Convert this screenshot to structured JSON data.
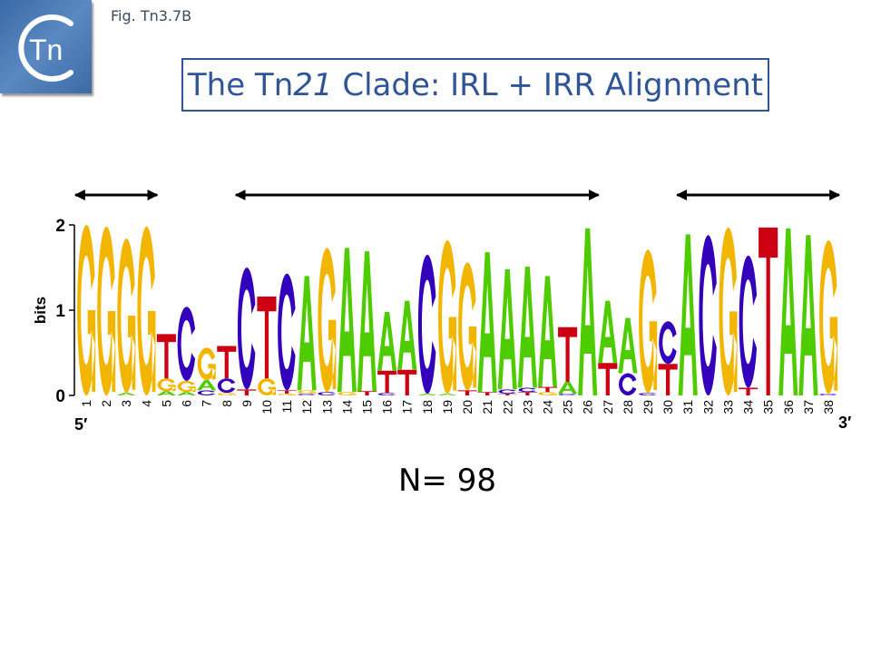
{
  "header": {
    "brand_text": "Tn",
    "figure_label": "Fig. Tn3.7B",
    "title_prefix": "The Tn",
    "title_italic": "21",
    "title_suffix": " Clade: IRL + IRR Alignment",
    "title_color": "#2f5597"
  },
  "footer": {
    "n_label": "N= 98"
  },
  "colors": {
    "A": "#4fcc00",
    "C": "#3300bb",
    "G": "#f2b600",
    "T": "#cc0011"
  },
  "chart_data": {
    "type": "sequence-logo",
    "ylabel": "bits",
    "ylim": [
      0,
      2
    ],
    "yticks": [
      "0",
      "1",
      "2"
    ],
    "five_prime_label": "5′",
    "three_prime_label": "3′",
    "arrow_spans": [
      [
        1,
        4
      ],
      [
        9,
        26
      ],
      [
        31,
        38
      ]
    ],
    "positions": [
      {
        "pos": "1",
        "stack": [
          [
            "G",
            2.0
          ]
        ]
      },
      {
        "pos": "2",
        "stack": [
          [
            "G",
            1.98
          ]
        ]
      },
      {
        "pos": "3",
        "stack": [
          [
            "A",
            0.03
          ],
          [
            "G",
            1.81
          ]
        ]
      },
      {
        "pos": "4",
        "stack": [
          [
            "G",
            1.98
          ]
        ]
      },
      {
        "pos": "5",
        "stack": [
          [
            "A",
            0.05
          ],
          [
            "G",
            0.15
          ],
          [
            "T",
            0.52
          ]
        ]
      },
      {
        "pos": "6",
        "stack": [
          [
            "A",
            0.04
          ],
          [
            "G",
            0.13
          ],
          [
            "C",
            0.87
          ]
        ]
      },
      {
        "pos": "7",
        "stack": [
          [
            "C",
            0.06
          ],
          [
            "A",
            0.12
          ],
          [
            "G",
            0.38
          ]
        ]
      },
      {
        "pos": "8",
        "stack": [
          [
            "G",
            0.03
          ],
          [
            "C",
            0.17
          ],
          [
            "T",
            0.38
          ]
        ]
      },
      {
        "pos": "9",
        "stack": [
          [
            "T",
            0.07
          ],
          [
            "C",
            1.43
          ]
        ]
      },
      {
        "pos": "10",
        "stack": [
          [
            "G",
            0.2
          ],
          [
            "T",
            0.96
          ]
        ]
      },
      {
        "pos": "11",
        "stack": [
          [
            "G",
            0.02
          ],
          [
            "T",
            0.04
          ],
          [
            "C",
            1.37
          ]
        ]
      },
      {
        "pos": "12",
        "stack": [
          [
            "C",
            0.02
          ],
          [
            "G",
            0.04
          ],
          [
            "A",
            1.34
          ]
        ]
      },
      {
        "pos": "13",
        "stack": [
          [
            "C",
            0.04
          ],
          [
            "G",
            1.69
          ]
        ]
      },
      {
        "pos": "14",
        "stack": [
          [
            "G",
            0.04
          ],
          [
            "A",
            1.69
          ]
        ]
      },
      {
        "pos": "15",
        "stack": [
          [
            "T",
            0.05
          ],
          [
            "A",
            1.64
          ]
        ]
      },
      {
        "pos": "16",
        "stack": [
          [
            "C",
            0.03
          ],
          [
            "T",
            0.26
          ],
          [
            "A",
            0.69
          ]
        ]
      },
      {
        "pos": "17",
        "stack": [
          [
            "T",
            0.3
          ],
          [
            "A",
            0.81
          ]
        ]
      },
      {
        "pos": "18",
        "stack": [
          [
            "A",
            0.02
          ],
          [
            "C",
            1.63
          ]
        ]
      },
      {
        "pos": "19",
        "stack": [
          [
            "A",
            0.02
          ],
          [
            "G",
            1.8
          ]
        ]
      },
      {
        "pos": "20",
        "stack": [
          [
            "T",
            0.06
          ],
          [
            "G",
            1.5
          ]
        ]
      },
      {
        "pos": "21",
        "stack": [
          [
            "T",
            0.04
          ],
          [
            "A",
            1.64
          ]
        ]
      },
      {
        "pos": "22",
        "stack": [
          [
            "T",
            0.02
          ],
          [
            "C",
            0.05
          ],
          [
            "A",
            1.41
          ]
        ]
      },
      {
        "pos": "23",
        "stack": [
          [
            "T",
            0.04
          ],
          [
            "C",
            0.05
          ],
          [
            "A",
            1.42
          ]
        ]
      },
      {
        "pos": "24",
        "stack": [
          [
            "G",
            0.04
          ],
          [
            "T",
            0.06
          ],
          [
            "A",
            1.3
          ]
        ]
      },
      {
        "pos": "25",
        "stack": [
          [
            "C",
            0.02
          ],
          [
            "A",
            0.14
          ],
          [
            "T",
            0.64
          ]
        ]
      },
      {
        "pos": "26",
        "stack": [
          [
            "A",
            1.96
          ]
        ]
      },
      {
        "pos": "27",
        "stack": [
          [
            "T",
            0.38
          ],
          [
            "A",
            0.73
          ]
        ]
      },
      {
        "pos": "28",
        "stack": [
          [
            "C",
            0.26
          ],
          [
            "A",
            0.65
          ]
        ]
      },
      {
        "pos": "29",
        "stack": [
          [
            "C",
            0.03
          ],
          [
            "G",
            1.68
          ]
        ]
      },
      {
        "pos": "30",
        "stack": [
          [
            "T",
            0.37
          ],
          [
            "C",
            0.5
          ]
        ]
      },
      {
        "pos": "31",
        "stack": [
          [
            "A",
            1.89
          ]
        ]
      },
      {
        "pos": "32",
        "stack": [
          [
            "C",
            1.88
          ]
        ]
      },
      {
        "pos": "33",
        "stack": [
          [
            "G",
            1.97
          ]
        ]
      },
      {
        "pos": "34",
        "stack": [
          [
            "T",
            0.09
          ],
          [
            "C",
            1.55
          ]
        ]
      },
      {
        "pos": "35",
        "stack": [
          [
            "T",
            1.97
          ]
        ]
      },
      {
        "pos": "36",
        "stack": [
          [
            "A",
            1.96
          ]
        ]
      },
      {
        "pos": "37",
        "stack": [
          [
            "A",
            1.88
          ]
        ]
      },
      {
        "pos": "38",
        "stack": [
          [
            "C",
            0.02
          ],
          [
            "G",
            1.8
          ]
        ]
      }
    ]
  }
}
